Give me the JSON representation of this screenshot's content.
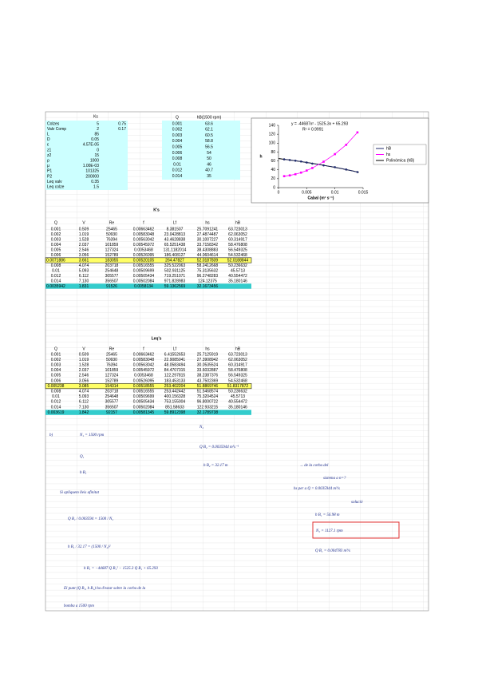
{
  "params": {
    "header": "Ks",
    "rows": [
      [
        "Colzes",
        "5",
        "0.75"
      ],
      [
        "Valv Comp",
        "2",
        "0.17"
      ],
      [
        "L",
        "85"
      ],
      [
        "D",
        "0.05"
      ],
      [
        "ε",
        "4.57E-05"
      ],
      [
        "z1",
        "0"
      ],
      [
        "z2",
        "15"
      ],
      [
        "ρ",
        "1000"
      ],
      [
        "μ",
        "1.00E-03"
      ],
      [
        "P1",
        "101325"
      ],
      [
        "P2",
        "200000"
      ],
      [
        "Leq valv",
        "0.35"
      ],
      [
        "Leq colze",
        "1.5"
      ]
    ]
  },
  "pump_table": {
    "headers": [
      "Q",
      "hB(1500 rpm)"
    ],
    "rows": [
      [
        "0.001",
        "63.6"
      ],
      [
        "0.002",
        "62.1"
      ],
      [
        "0.003",
        "60.5"
      ],
      [
        "0.004",
        "58.8"
      ],
      [
        "0.005",
        "56.5"
      ],
      [
        "0.006",
        "54"
      ],
      [
        "0.008",
        "50"
      ],
      [
        "0.01",
        "46"
      ],
      [
        "0.012",
        "40.7"
      ],
      [
        "0.014",
        "35"
      ]
    ]
  },
  "chart_data": {
    "type": "scatter",
    "y_label": "h",
    "x_label": "Cabal (m³ s⁻¹)",
    "xlim": [
      0,
      0.015
    ],
    "xticks": [
      0,
      0.005,
      0.01,
      0.015
    ],
    "ylim": [
      0,
      140
    ],
    "yticks": [
      0,
      20,
      40,
      60,
      80,
      100,
      120,
      140
    ],
    "x": [
      0.001,
      0.002,
      0.003,
      0.004,
      0.005,
      0.006,
      0.008,
      0.01,
      0.012,
      0.014
    ],
    "series": [
      {
        "name": "hB",
        "color": "#1f2a6b",
        "values": [
          63.6,
          62.1,
          60.5,
          58.8,
          56.5,
          54,
          50,
          46,
          40.7,
          35
        ]
      },
      {
        "name": "hs",
        "color": "#ff00ff",
        "values": [
          25.71,
          27.49,
          30.1,
          33.72,
          38.43,
          44.06,
          58.24,
          75.31,
          96.27,
          124.12
        ]
      }
    ],
    "trendline": {
      "name": "Polinómica (hB)",
      "color": "#000000",
      "coefficients": [
        -44687,
        -1525.3,
        65.293
      ],
      "equation": "y = -44687x² - 1525.3x + 65.293",
      "r2": "R² = 0.9991"
    }
  },
  "ks_table": {
    "title": "K's",
    "headers": [
      "Q",
      "V",
      "Re",
      "f",
      "Lf",
      "hs",
      "hB"
    ],
    "rows": [
      [
        "0.001",
        "0.509",
        "25465",
        "0.00663462",
        "8.381507",
        "25.7091241",
        "63.723013"
      ],
      [
        "0.002",
        "1.019",
        "50930",
        "0.00583048",
        "23.0428813",
        "27.4874487",
        "62.063052"
      ],
      [
        "0.003",
        "1.528",
        "76394",
        "0.00563042",
        "43.4628838",
        "30.1007227",
        "60.314917"
      ],
      [
        "0.004",
        "2.037",
        "101859",
        "0.00545972",
        "65.5251438",
        "33.7158342",
        "58.476808"
      ],
      [
        "0.005",
        "2.546",
        "127324",
        "0.0053468",
        "131.1182014",
        "38.4308883",
        "56.549325"
      ],
      [
        "0.006",
        "3.056",
        "152789",
        "0.00526095",
        "186.408127",
        "44.0604614",
        "54.532468"
      ],
      [
        "0.0071886",
        "3.661",
        "183055",
        "0.00520105",
        "264.47827",
        "52.0187839",
        "52.0188844"
      ],
      [
        "0.008",
        "4.074",
        "203718",
        "0.00516555",
        "325.522063",
        "58.2412668",
        "50.236632"
      ],
      [
        "0.01",
        "5.093",
        "254648",
        "0.00509699",
        "502.931125",
        "75.3135632",
        "45.5713"
      ],
      [
        "0.012",
        "6.112",
        "305577",
        "0.00505434",
        "719.251071",
        "96.2748283",
        "40.554472"
      ],
      [
        "0.014",
        "7.130",
        "356507",
        "0.00502084",
        "971.828983",
        "124.12375",
        "35.180146"
      ],
      [
        "0.0035942",
        "1.831",
        "91526",
        "0.0058134",
        "59.1362569",
        "32.1673456"
      ]
    ]
  },
  "leq_table": {
    "title": "Leq's",
    "headers": [
      "Q",
      "V",
      "Re",
      "f",
      "Lf",
      "hs",
      "hB"
    ],
    "rows": [
      [
        "0.001",
        "0.509",
        "25465",
        "0.00663462",
        "6.41552653",
        "25.7125919",
        "63.723013"
      ],
      [
        "0.002",
        "1.019",
        "50930",
        "0.00583048",
        "22.9085041",
        "27.3908942",
        "62.063052"
      ],
      [
        "0.003",
        "1.528",
        "76394",
        "0.00563042",
        "48.0583494",
        "30.0535524",
        "60.314917"
      ],
      [
        "0.004",
        "2.037",
        "101859",
        "0.00545972",
        "84.4707315",
        "33.6032887",
        "58.476808"
      ],
      [
        "0.005",
        "2.546",
        "127324",
        "0.0053468",
        "122.297815",
        "38.2387376",
        "56.549325"
      ],
      [
        "0.006",
        "3.056",
        "152789",
        "0.00526095",
        "183.453133",
        "43.7502369",
        "54.532468"
      ],
      [
        "0.005238",
        "3.085",
        "154314",
        "0.00518555",
        "253.402204",
        "51.8869746",
        "51.8317872"
      ],
      [
        "0.008",
        "4.074",
        "203718",
        "0.00516555",
        "253.442442",
        "51.5468574",
        "50.236632"
      ],
      [
        "0.01",
        "5.093",
        "254648",
        "0.00509699",
        "400.156328",
        "75.3204524",
        "45.5713"
      ],
      [
        "0.012",
        "6.112",
        "305577",
        "0.00505434",
        "753.155004",
        "96.8000722",
        "40.554472"
      ],
      [
        "0.014",
        "7.130",
        "356507",
        "0.00502084",
        "851.58633",
        "122.933215",
        "35.180146"
      ],
      [
        "0.003619",
        "1.842",
        "92157",
        "0.00581345",
        "59.8912398",
        "32.1789738"
      ]
    ]
  },
  "notes": [
    "b)",
    "N₁ = 1500 rpm",
    "N₂",
    "Q B₂ = 0.0035944 m³s⁻¹",
    "Q₁",
    "h B₁",
    "h B₂ = 32.17 m",
    "→ de la corba del",
    "sistema a n=?",
    "hs per a Q = 0.0035944 m³/s",
    "solució",
    "Si apliquem lleis afinitat",
    "Q B₁ / 0.003594 = 1500 / N₂",
    "h B₁ / 32.17 = (1500 / N₂)²",
    "h B₁ = 56.98 m",
    "N₂ = 1127.1 rpm",
    "Q B₁ = 0.004783 m³/s",
    "h B₁ = −44687 Q B₁² − 1525.3 Q B₁ + 65.293",
    "El punt (Q B₁, h B₁) ha d'estar sobre la corba de la",
    "bomba a 1500 rpm"
  ]
}
